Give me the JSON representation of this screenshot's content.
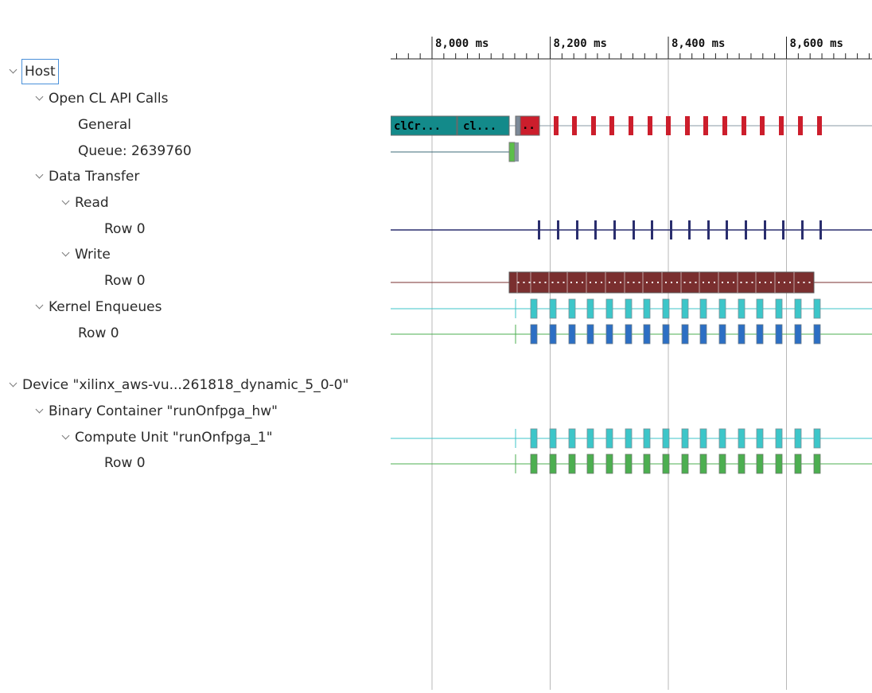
{
  "tree": [
    {
      "id": "host",
      "label": "Host",
      "level": 0,
      "expanded": true,
      "selected": true
    },
    {
      "id": "opencl",
      "label": "Open CL API Calls",
      "level": 1,
      "expanded": true
    },
    {
      "id": "general",
      "label": "General",
      "level": 2,
      "expanded": false
    },
    {
      "id": "queue",
      "label": "Queue: 2639760",
      "level": 2,
      "expanded": false
    },
    {
      "id": "datatransfer",
      "label": "Data Transfer",
      "level": 1,
      "expanded": true
    },
    {
      "id": "read",
      "label": "Read",
      "level": 2,
      "expanded": true
    },
    {
      "id": "read-row0",
      "label": "Row 0",
      "level": 3,
      "expanded": false
    },
    {
      "id": "write",
      "label": "Write",
      "level": 2,
      "expanded": true
    },
    {
      "id": "write-row0",
      "label": "Row 0",
      "level": 3,
      "expanded": false
    },
    {
      "id": "kernel",
      "label": "Kernel Enqueues",
      "level": 1,
      "expanded": true
    },
    {
      "id": "kernel-row0",
      "label": "Row 0",
      "level": 2,
      "expanded": false
    },
    {
      "id": "device",
      "label": "Device \"xilinx_aws-vu...261818_dynamic_5_0-0\"",
      "level": 0,
      "expanded": true
    },
    {
      "id": "binary",
      "label": "Binary Container \"runOnfpga_hw\"",
      "level": 1,
      "expanded": true
    },
    {
      "id": "cu",
      "label": "Compute Unit \"runOnfpga_1\"",
      "level": 2,
      "expanded": true
    },
    {
      "id": "cu-row0",
      "label": "Row 0",
      "level": 3,
      "expanded": false
    }
  ],
  "timeline": {
    "ticks": [
      {
        "value": 8000,
        "label": "8,000 ms"
      },
      {
        "value": 8200,
        "label": "8,200 ms"
      },
      {
        "value": 8400,
        "label": "8,400 ms"
      },
      {
        "value": 8600,
        "label": "8,600 ms"
      }
    ],
    "colors": {
      "clcall": "#138a8a",
      "general_red": "#cc1e2c",
      "read": "#2a2e6e",
      "write": "#7a2f2f",
      "kernel_top": "#3cc6c9",
      "kernel_bottom": "#2c6fc4",
      "cu_top": "#3cc6c9",
      "cu_bottom": "#4caf50",
      "queue_green": "#5bbf4a"
    },
    "bar_labels": {
      "first": "clCr...",
      "second": "cl...",
      "red_block": "..",
      "ellipsis": "."
    }
  }
}
